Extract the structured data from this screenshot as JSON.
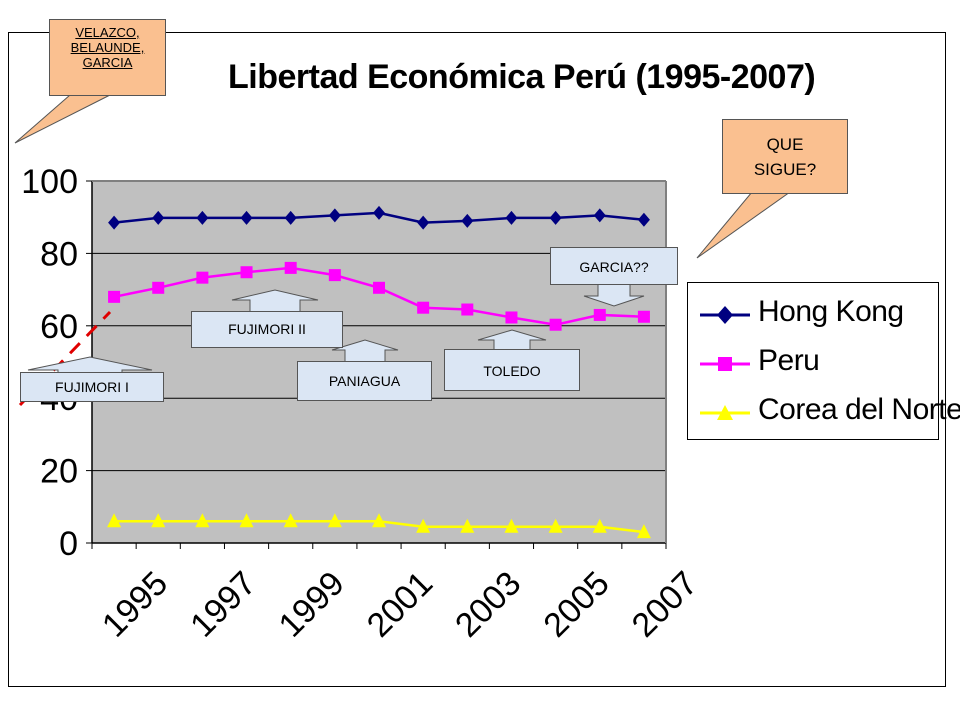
{
  "chart_data": {
    "type": "line",
    "title": "Libertad Económica Perú (1995-2007)",
    "x": [
      "1995",
      "1996",
      "1997",
      "1998",
      "1999",
      "2000",
      "2001",
      "2002",
      "2003",
      "2004",
      "2005",
      "2006",
      "2007"
    ],
    "xtick_labels": [
      "1995",
      "1997",
      "1999",
      "2001",
      "2003",
      "2005",
      "2007"
    ],
    "ylim": [
      0,
      100
    ],
    "ytick_labels": [
      "0",
      "20",
      "40",
      "60",
      "80",
      "100"
    ],
    "grid": true,
    "legend_position": "right",
    "series": [
      {
        "name": "Hong Kong",
        "color": "#000080",
        "marker": "diamond",
        "values": [
          88.5,
          89.8,
          89.8,
          89.8,
          89.8,
          90.5,
          91.2,
          88.5,
          89.0,
          89.8,
          89.8,
          90.5,
          89.3
        ]
      },
      {
        "name": "Peru",
        "color": "#ff00ff",
        "marker": "square",
        "values": [
          68.0,
          70.5,
          73.3,
          74.8,
          76.0,
          74.0,
          70.5,
          65.0,
          64.5,
          62.3,
          60.3,
          63.0,
          62.5
        ]
      },
      {
        "name": "Corea del Norte",
        "color": "#ffff00",
        "marker": "triangle",
        "values": [
          6.0,
          6.0,
          6.0,
          6.0,
          6.0,
          6.0,
          6.0,
          4.5,
          4.5,
          4.5,
          4.5,
          4.5,
          3.0
        ]
      }
    ]
  },
  "callouts": {
    "top_left": "VELAZCO, BELAUNDE, GARCIA",
    "top_right": "QUE SIGUE?"
  },
  "annotations": {
    "fujimori1": "FUJIMORI I",
    "fujimori2": "FUJIMORI II",
    "paniagua": "PANIAGUA",
    "toledo": "TOLEDO",
    "garcia": "GARCIA??"
  },
  "colors": {
    "plot_bg": "#c0c0c0",
    "callout_fill": "#fac090",
    "box_fill": "#dbe6f4"
  }
}
